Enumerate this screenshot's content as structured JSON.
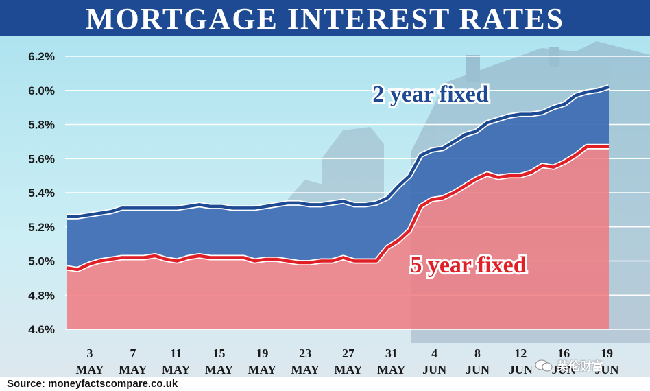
{
  "title": "MORTGAGE INTEREST RATES",
  "source": "Source: moneyfactscompare.co.uk",
  "watermark": "英伦财富",
  "colors": {
    "title_bg": "#1d4a93",
    "two_year_line": "#1d4a93",
    "two_year_fill": "#3d6bb3",
    "five_year_line": "#e01f26",
    "five_year_fill": "#f07a80"
  },
  "chart_data": {
    "type": "area",
    "ylim": [
      4.6,
      6.2
    ],
    "yticks": [
      "6.2%",
      "6.0%",
      "5.8%",
      "5.6%",
      "5.4%",
      "5.2%",
      "5.0%",
      "4.8%",
      "4.6%"
    ],
    "ytick_values": [
      6.2,
      6.0,
      5.8,
      5.6,
      5.4,
      5.2,
      5.0,
      4.8,
      4.6
    ],
    "xticks": [
      {
        "day": "3",
        "month": "MAY"
      },
      {
        "day": "7",
        "month": "MAY"
      },
      {
        "day": "11",
        "month": "MAY"
      },
      {
        "day": "15",
        "month": "MAY"
      },
      {
        "day": "19",
        "month": "MAY"
      },
      {
        "day": "23",
        "month": "MAY"
      },
      {
        "day": "27",
        "month": "MAY"
      },
      {
        "day": "31",
        "month": "MAY"
      },
      {
        "day": "4",
        "month": "JUN"
      },
      {
        "day": "8",
        "month": "JUN"
      },
      {
        "day": "12",
        "month": "JUN"
      },
      {
        "day": "16",
        "month": "JUN"
      },
      {
        "day": "19",
        "month": "JUN"
      }
    ],
    "grid": true,
    "series": [
      {
        "name": "2 year fixed",
        "points": [
          [
            "2023-05-01",
            5.26
          ],
          [
            "2023-05-02",
            5.26
          ],
          [
            "2023-05-03",
            5.27
          ],
          [
            "2023-05-04",
            5.28
          ],
          [
            "2023-05-05",
            5.29
          ],
          [
            "2023-05-06",
            5.31
          ],
          [
            "2023-05-07",
            5.31
          ],
          [
            "2023-05-08",
            5.31
          ],
          [
            "2023-05-09",
            5.31
          ],
          [
            "2023-05-10",
            5.31
          ],
          [
            "2023-05-11",
            5.31
          ],
          [
            "2023-05-12",
            5.32
          ],
          [
            "2023-05-13",
            5.33
          ],
          [
            "2023-05-14",
            5.32
          ],
          [
            "2023-05-15",
            5.32
          ],
          [
            "2023-05-16",
            5.31
          ],
          [
            "2023-05-17",
            5.31
          ],
          [
            "2023-05-18",
            5.31
          ],
          [
            "2023-05-19",
            5.32
          ],
          [
            "2023-05-20",
            5.33
          ],
          [
            "2023-05-21",
            5.34
          ],
          [
            "2023-05-22",
            5.34
          ],
          [
            "2023-05-23",
            5.33
          ],
          [
            "2023-05-24",
            5.33
          ],
          [
            "2023-05-25",
            5.34
          ],
          [
            "2023-05-26",
            5.35
          ],
          [
            "2023-05-27",
            5.33
          ],
          [
            "2023-05-28",
            5.33
          ],
          [
            "2023-05-29",
            5.34
          ],
          [
            "2023-05-30",
            5.37
          ],
          [
            "2023-05-31",
            5.44
          ],
          [
            "2023-06-01",
            5.5
          ],
          [
            "2023-06-02",
            5.62
          ],
          [
            "2023-06-03",
            5.65
          ],
          [
            "2023-06-04",
            5.66
          ],
          [
            "2023-06-05",
            5.7
          ],
          [
            "2023-06-06",
            5.74
          ],
          [
            "2023-06-07",
            5.76
          ],
          [
            "2023-06-08",
            5.81
          ],
          [
            "2023-06-09",
            5.83
          ],
          [
            "2023-06-10",
            5.85
          ],
          [
            "2023-06-11",
            5.86
          ],
          [
            "2023-06-12",
            5.86
          ],
          [
            "2023-06-13",
            5.87
          ],
          [
            "2023-06-14",
            5.9
          ],
          [
            "2023-06-15",
            5.92
          ],
          [
            "2023-06-16",
            5.97
          ],
          [
            "2023-06-17",
            5.99
          ],
          [
            "2023-06-18",
            6.0
          ],
          [
            "2023-06-19",
            6.02
          ]
        ]
      },
      {
        "name": "5 year fixed",
        "points": [
          [
            "2023-05-01",
            4.96
          ],
          [
            "2023-05-02",
            4.95
          ],
          [
            "2023-05-03",
            4.98
          ],
          [
            "2023-05-04",
            5.0
          ],
          [
            "2023-05-05",
            5.01
          ],
          [
            "2023-05-06",
            5.02
          ],
          [
            "2023-05-07",
            5.02
          ],
          [
            "2023-05-08",
            5.02
          ],
          [
            "2023-05-09",
            5.03
          ],
          [
            "2023-05-10",
            5.01
          ],
          [
            "2023-05-11",
            5.0
          ],
          [
            "2023-05-12",
            5.02
          ],
          [
            "2023-05-13",
            5.03
          ],
          [
            "2023-05-14",
            5.02
          ],
          [
            "2023-05-15",
            5.02
          ],
          [
            "2023-05-16",
            5.02
          ],
          [
            "2023-05-17",
            5.02
          ],
          [
            "2023-05-18",
            5.0
          ],
          [
            "2023-05-19",
            5.01
          ],
          [
            "2023-05-20",
            5.01
          ],
          [
            "2023-05-21",
            5.0
          ],
          [
            "2023-05-22",
            4.99
          ],
          [
            "2023-05-23",
            4.99
          ],
          [
            "2023-05-24",
            5.0
          ],
          [
            "2023-05-25",
            5.0
          ],
          [
            "2023-05-26",
            5.02
          ],
          [
            "2023-05-27",
            5.0
          ],
          [
            "2023-05-28",
            5.0
          ],
          [
            "2023-05-29",
            5.0
          ],
          [
            "2023-05-30",
            5.08
          ],
          [
            "2023-05-31",
            5.12
          ],
          [
            "2023-06-01",
            5.18
          ],
          [
            "2023-06-02",
            5.32
          ],
          [
            "2023-06-03",
            5.36
          ],
          [
            "2023-06-04",
            5.37
          ],
          [
            "2023-06-05",
            5.4
          ],
          [
            "2023-06-06",
            5.44
          ],
          [
            "2023-06-07",
            5.48
          ],
          [
            "2023-06-08",
            5.51
          ],
          [
            "2023-06-09",
            5.49
          ],
          [
            "2023-06-10",
            5.5
          ],
          [
            "2023-06-11",
            5.5
          ],
          [
            "2023-06-12",
            5.52
          ],
          [
            "2023-06-13",
            5.56
          ],
          [
            "2023-06-14",
            5.55
          ],
          [
            "2023-06-15",
            5.58
          ],
          [
            "2023-06-16",
            5.62
          ],
          [
            "2023-06-17",
            5.67
          ],
          [
            "2023-06-18",
            5.67
          ],
          [
            "2023-06-19",
            5.67
          ]
        ]
      }
    ]
  }
}
